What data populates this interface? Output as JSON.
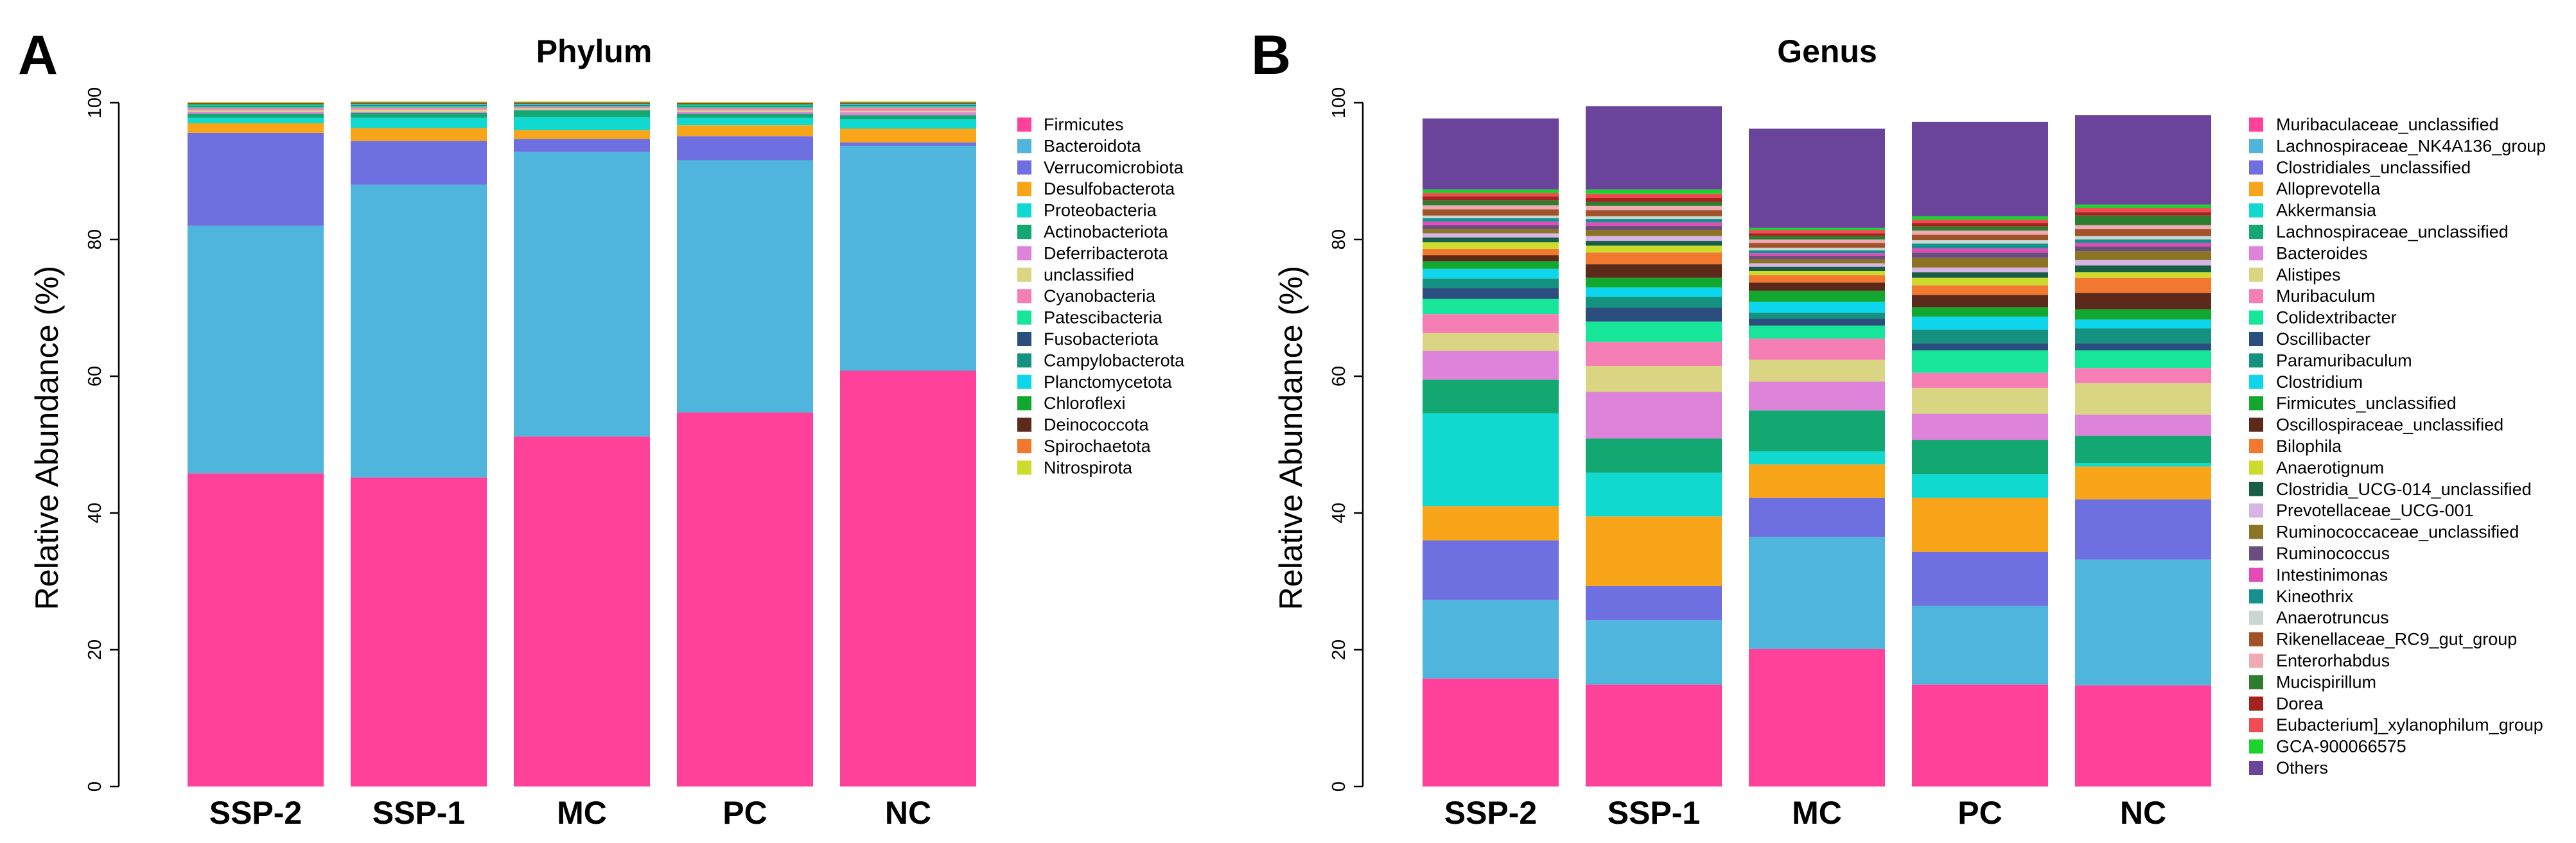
{
  "chart_data": [
    {
      "panel": "A",
      "type": "bar",
      "stacked": true,
      "title": "Phylum",
      "xlabel": "",
      "ylabel": "Relative Abundance (%)",
      "ylim": [
        0,
        100
      ],
      "yticks": [
        "0",
        "20",
        "40",
        "60",
        "80",
        "100"
      ],
      "categories": [
        "SSP-2",
        "SSP-1",
        "MC",
        "PC",
        "NC"
      ],
      "legend_position": "right",
      "series": [
        {
          "name": "Firmicutes",
          "color": "#FF4199",
          "values": [
            45.8,
            45.2,
            51.2,
            54.7,
            60.8
          ]
        },
        {
          "name": "Bacteroidota",
          "color": "#4FB5DC",
          "values": [
            36.2,
            42.8,
            41.6,
            36.9,
            32.9
          ]
        },
        {
          "name": "Verrucomicrobiota",
          "color": "#6E6FE0",
          "values": [
            13.6,
            6.4,
            1.9,
            3.5,
            0.5
          ]
        },
        {
          "name": "Desulfobacterota",
          "color": "#F9A51A",
          "values": [
            1.4,
            1.9,
            1.3,
            1.6,
            2.0
          ]
        },
        {
          "name": "Proteobacteria",
          "color": "#10D9CF",
          "values": [
            0.8,
            1.5,
            1.9,
            1.1,
            1.4
          ]
        },
        {
          "name": "Actinobacteriota",
          "color": "#13A871",
          "values": [
            0.6,
            0.7,
            1.0,
            0.6,
            0.6
          ]
        },
        {
          "name": "Deferribacterota",
          "color": "#DD83DA",
          "values": [
            0.3,
            0.2,
            0.1,
            0.3,
            0.4
          ]
        },
        {
          "name": "unclassified",
          "color": "#D9D582",
          "values": [
            0.2,
            0.3,
            0.2,
            0.2,
            0.2
          ]
        },
        {
          "name": "Cyanobacteria",
          "color": "#F57FB5",
          "values": [
            0.3,
            0.3,
            0.2,
            0.3,
            0.5
          ]
        },
        {
          "name": "Patescibacteria",
          "color": "#17E69A",
          "values": [
            0.2,
            0.2,
            0.1,
            0.2,
            0.2
          ]
        },
        {
          "name": "Fusobacteriota",
          "color": "#2B4E7E",
          "values": [
            0.1,
            0.1,
            0.1,
            0.1,
            0.1
          ]
        },
        {
          "name": "Campylobacterota",
          "color": "#14917F",
          "values": [
            0.1,
            0.1,
            0.1,
            0.1,
            0.1
          ]
        },
        {
          "name": "Planctomycetota",
          "color": "#0DD6EC",
          "values": [
            0.1,
            0.1,
            0.1,
            0.1,
            0.1
          ]
        },
        {
          "name": "Chloroflexi",
          "color": "#12A72E",
          "values": [
            0.1,
            0.1,
            0.1,
            0.1,
            0.1
          ]
        },
        {
          "name": "Deinococcota",
          "color": "#5C2A1A",
          "values": [
            0.1,
            0.1,
            0.1,
            0.1,
            0.1
          ]
        },
        {
          "name": "Spirochaetota",
          "color": "#F2772F",
          "values": [
            0.1,
            0.1,
            0.1,
            0.1,
            0.1
          ]
        },
        {
          "name": "Nitrospirota",
          "color": "#CDDC2C",
          "values": [
            0.1,
            0.1,
            0.1,
            0.1,
            0.1
          ]
        }
      ]
    },
    {
      "panel": "B",
      "type": "bar",
      "stacked": true,
      "title": "Genus",
      "xlabel": "",
      "ylabel": "Relative Abundance (%)",
      "ylim": [
        0,
        100
      ],
      "yticks": [
        "0",
        "20",
        "40",
        "60",
        "80",
        "100"
      ],
      "categories": [
        "SSP-2",
        "SSP-1",
        "MC",
        "PC",
        "NC"
      ],
      "legend_position": "right",
      "series": [
        {
          "name": "Muribaculaceae_unclassified",
          "color": "#FF4199",
          "values": [
            15.8,
            14.9,
            20.1,
            14.9,
            14.8
          ]
        },
        {
          "name": "Lachnospiraceae_NK4A136_group",
          "color": "#4FB5DC",
          "values": [
            11.5,
            9.4,
            16.4,
            11.5,
            18.4
          ]
        },
        {
          "name": "Clostridiales_unclassified",
          "color": "#6E6FE0",
          "values": [
            8.7,
            5.0,
            5.7,
            7.9,
            8.8
          ]
        },
        {
          "name": "Alloprevotella",
          "color": "#F9A51A",
          "values": [
            5.0,
            10.2,
            4.9,
            7.9,
            4.8
          ]
        },
        {
          "name": "Akkermansia",
          "color": "#10D9CF",
          "values": [
            13.6,
            6.4,
            1.9,
            3.5,
            0.5
          ]
        },
        {
          "name": "Lachnospiraceae_unclassified",
          "color": "#13A871",
          "values": [
            4.9,
            5.0,
            6.0,
            5.0,
            4.0
          ]
        },
        {
          "name": "Bacteroides",
          "color": "#DD83DA",
          "values": [
            4.2,
            6.8,
            4.2,
            3.8,
            3.1
          ]
        },
        {
          "name": "Alistipes",
          "color": "#D9D582",
          "values": [
            2.6,
            3.8,
            3.2,
            3.8,
            4.6
          ]
        },
        {
          "name": "Muribaculum",
          "color": "#F57FB5",
          "values": [
            2.8,
            3.5,
            3.1,
            2.2,
            2.2
          ]
        },
        {
          "name": "Colidextribacter",
          "color": "#17E69A",
          "values": [
            2.2,
            3.0,
            1.9,
            3.3,
            2.6
          ]
        },
        {
          "name": "Oscillibacter",
          "color": "#2B4E7E",
          "values": [
            1.6,
            2.0,
            1.0,
            1.0,
            1.0
          ]
        },
        {
          "name": "Paramuribaculum",
          "color": "#14917F",
          "values": [
            1.4,
            1.6,
            0.9,
            2.0,
            2.2
          ]
        },
        {
          "name": "Clostridium",
          "color": "#0DD6EC",
          "values": [
            1.4,
            1.4,
            1.6,
            1.9,
            1.3
          ]
        },
        {
          "name": "Firmicutes_unclassified",
          "color": "#12A72E",
          "values": [
            1.1,
            1.4,
            1.6,
            1.4,
            1.5
          ]
        },
        {
          "name": "Oscillospiraceae_unclassified",
          "color": "#5C2A1A",
          "values": [
            0.9,
            2.0,
            1.2,
            1.8,
            2.4
          ]
        },
        {
          "name": "Bilophila",
          "color": "#F2772F",
          "values": [
            0.9,
            1.7,
            1.1,
            1.4,
            2.2
          ]
        },
        {
          "name": "Anaerotignum",
          "color": "#CDDC2C",
          "values": [
            1.0,
            1.0,
            0.6,
            1.1,
            0.8
          ]
        },
        {
          "name": "Clostridia_UCG-014_unclassified",
          "color": "#175E44",
          "values": [
            0.7,
            0.7,
            0.6,
            0.8,
            1.0
          ]
        },
        {
          "name": "Prevotellaceae_UCG-001",
          "color": "#D7B4E6",
          "values": [
            0.6,
            0.7,
            0.5,
            0.7,
            0.8
          ]
        },
        {
          "name": "Ruminococcaceae_unclassified",
          "color": "#8C7425",
          "values": [
            0.6,
            0.9,
            0.6,
            1.4,
            1.3
          ]
        },
        {
          "name": "Ruminococcus",
          "color": "#6A4E7E",
          "values": [
            0.6,
            0.6,
            0.5,
            0.8,
            0.7
          ]
        },
        {
          "name": "Intestinimonas",
          "color": "#E54BB8",
          "values": [
            0.5,
            0.5,
            0.4,
            0.6,
            0.5
          ]
        },
        {
          "name": "Kineothrix",
          "color": "#15908D",
          "values": [
            0.5,
            0.5,
            0.4,
            0.7,
            0.5
          ]
        },
        {
          "name": "Anaerotruncus",
          "color": "#C8D7D2",
          "values": [
            0.4,
            0.4,
            0.4,
            0.5,
            0.5
          ]
        },
        {
          "name": "Rikenellaceae_RC9_gut_group",
          "color": "#A05329",
          "values": [
            0.9,
            0.9,
            0.7,
            0.8,
            1.0
          ]
        },
        {
          "name": "Enterorhabdus",
          "color": "#EFAAB4",
          "values": [
            0.6,
            0.6,
            0.5,
            0.6,
            0.6
          ]
        },
        {
          "name": "Mucispirillum",
          "color": "#2E7D2E",
          "values": [
            0.7,
            0.6,
            0.5,
            0.6,
            1.4
          ]
        },
        {
          "name": "Dorea",
          "color": "#A3241E",
          "values": [
            0.6,
            0.6,
            0.4,
            0.5,
            0.5
          ]
        },
        {
          "name": "Eubacterium]_xylanophilum_group",
          "color": "#EE4B52",
          "values": [
            0.5,
            0.6,
            0.5,
            0.5,
            0.6
          ]
        },
        {
          "name": "GCA-900066575",
          "color": "#1AD42B",
          "values": [
            0.5,
            0.6,
            0.3,
            0.5,
            0.5
          ]
        },
        {
          "name": "Others",
          "color": "#6A449A",
          "values": [
            10.4,
            12.2,
            14.5,
            13.8,
            13.1
          ]
        }
      ]
    }
  ]
}
